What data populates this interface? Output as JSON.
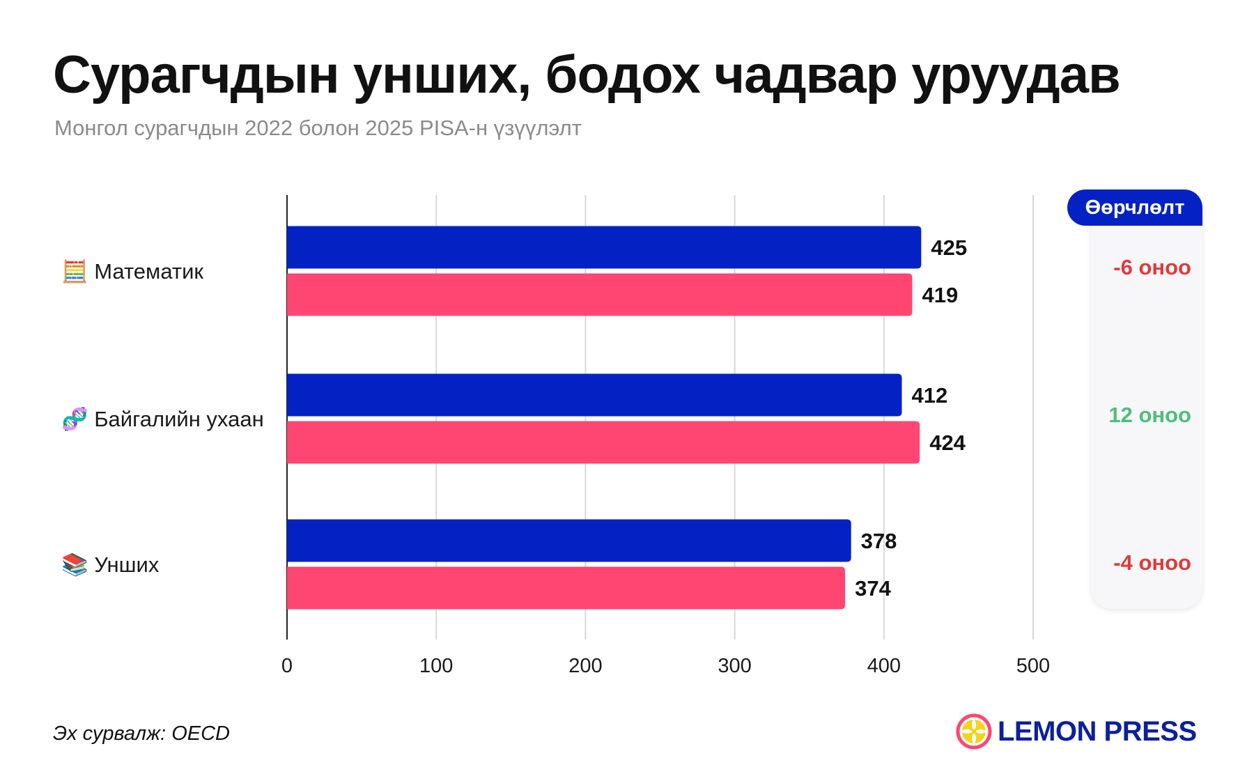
{
  "title": "Сурагчдын унших, бодох чадвар уруудав",
  "subtitle": "Монгол сурагчдын 2022 болон 2025 PISA-н үзүүлэлт",
  "source": "Эх сурвалж: OECD",
  "logo_text": "LEMON PRESS",
  "colors": {
    "series_a": "#0422c4",
    "series_b": "#ff4673",
    "negative": "#e03a3a",
    "positive": "#4cbf7a",
    "logo": "#0b1f9e"
  },
  "change": {
    "header": "Өөрчлөлт",
    "items": [
      {
        "text": "-6 оноо",
        "sign": "negative"
      },
      {
        "text": "12 оноо",
        "sign": "positive"
      },
      {
        "text": "-4 оноо",
        "sign": "negative"
      }
    ]
  },
  "chart_data": {
    "type": "bar",
    "orientation": "horizontal",
    "categories": [
      "🧮 Математик",
      "🧬 Байгалийн ухаан",
      "📚 Унших"
    ],
    "series": [
      {
        "values": [
          425,
          412,
          378
        ],
        "color": "#0422c4"
      },
      {
        "values": [
          419,
          424,
          374
        ],
        "color": "#ff4673"
      }
    ],
    "xlim": [
      0,
      500
    ],
    "xticks": [
      0,
      100,
      200,
      300,
      400,
      500
    ],
    "grid": true
  }
}
